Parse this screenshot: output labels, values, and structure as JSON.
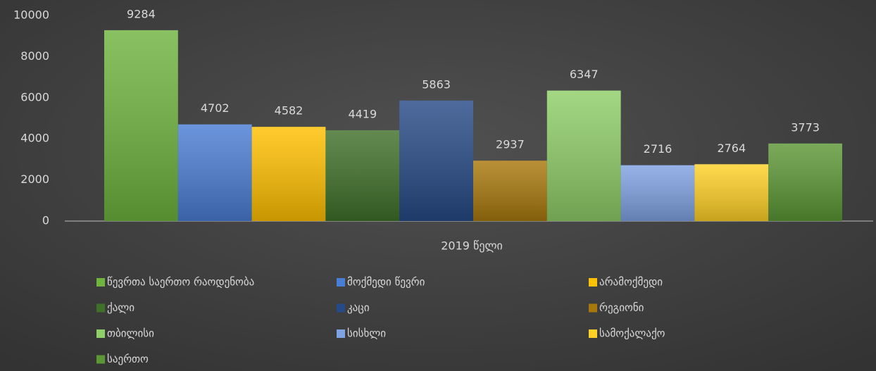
{
  "chart_data": {
    "type": "bar",
    "categories": [
      "2019 წელი"
    ],
    "series": [
      {
        "name": "წევრთა საერთო რაოდენობა",
        "color": "#6fb43f",
        "values": [
          9284
        ]
      },
      {
        "name": "მოქმედი წევრი",
        "color": "#4a7dd4",
        "values": [
          4702
        ]
      },
      {
        "name": "არამოქმედი",
        "color": "#ffc000",
        "values": [
          4582
        ]
      },
      {
        "name": "ქალი",
        "color": "#40702a",
        "values": [
          4419
        ]
      },
      {
        "name": "კაცი",
        "color": "#264a86",
        "values": [
          5863
        ]
      },
      {
        "name": "რეგიონი",
        "color": "#a8780c",
        "values": [
          2937
        ]
      },
      {
        "name": "თბილისი",
        "color": "#8fce68",
        "values": [
          6347
        ]
      },
      {
        "name": "სისხლი",
        "color": "#7fa2e2",
        "values": [
          2716
        ]
      },
      {
        "name": "სამოქალაქო",
        "color": "#ffd126",
        "values": [
          2764
        ]
      },
      {
        "name": "საერთო",
        "color": "#5c9735",
        "values": [
          3773
        ]
      }
    ],
    "ylim": [
      0,
      10000
    ],
    "yticks": [
      0,
      2000,
      4000,
      6000,
      8000,
      10000
    ],
    "grid": false
  }
}
